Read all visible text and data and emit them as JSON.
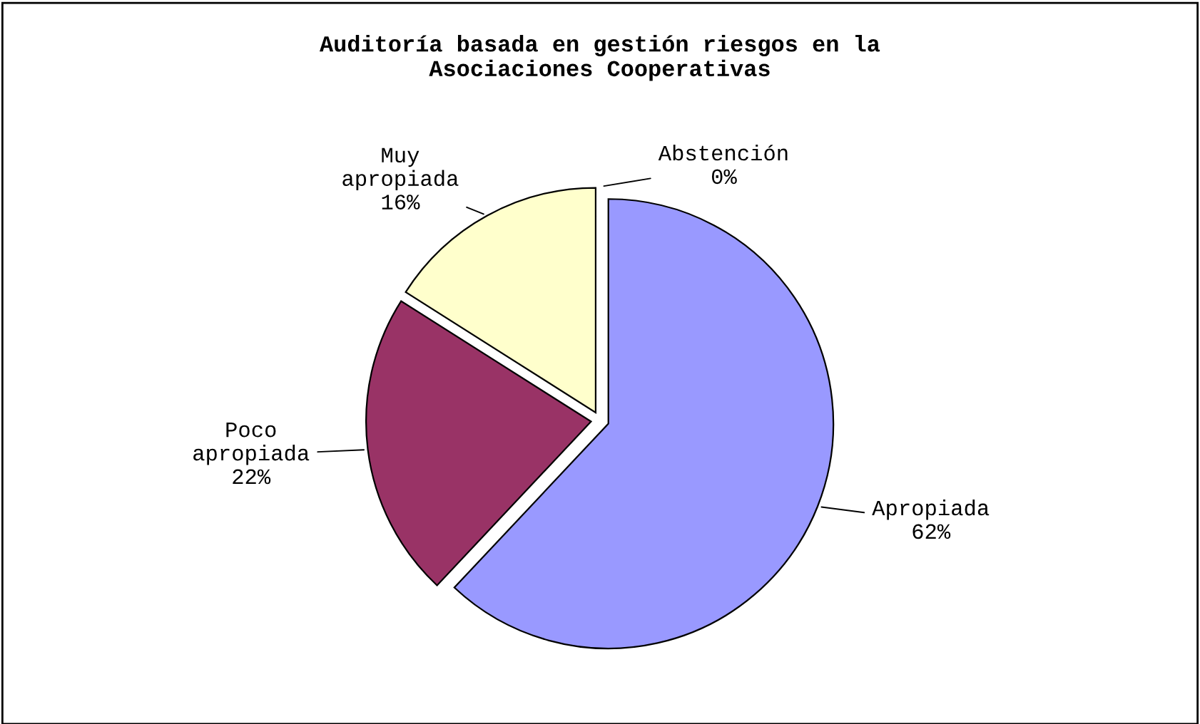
{
  "chart_data": {
    "type": "pie",
    "title": "Auditoría basada en gestión riesgos en la\nAsociaciones Cooperativas",
    "categories": [
      "Apropiada",
      "Poco apropiada",
      "Muy apropiada",
      "Abstención"
    ],
    "values": [
      62,
      22,
      16,
      0
    ],
    "value_labels": [
      "62%",
      "22%",
      "16%",
      "0%"
    ],
    "colors": [
      "#9999ff",
      "#993366",
      "#ffffcc",
      "#ccffff"
    ],
    "legend": false
  }
}
